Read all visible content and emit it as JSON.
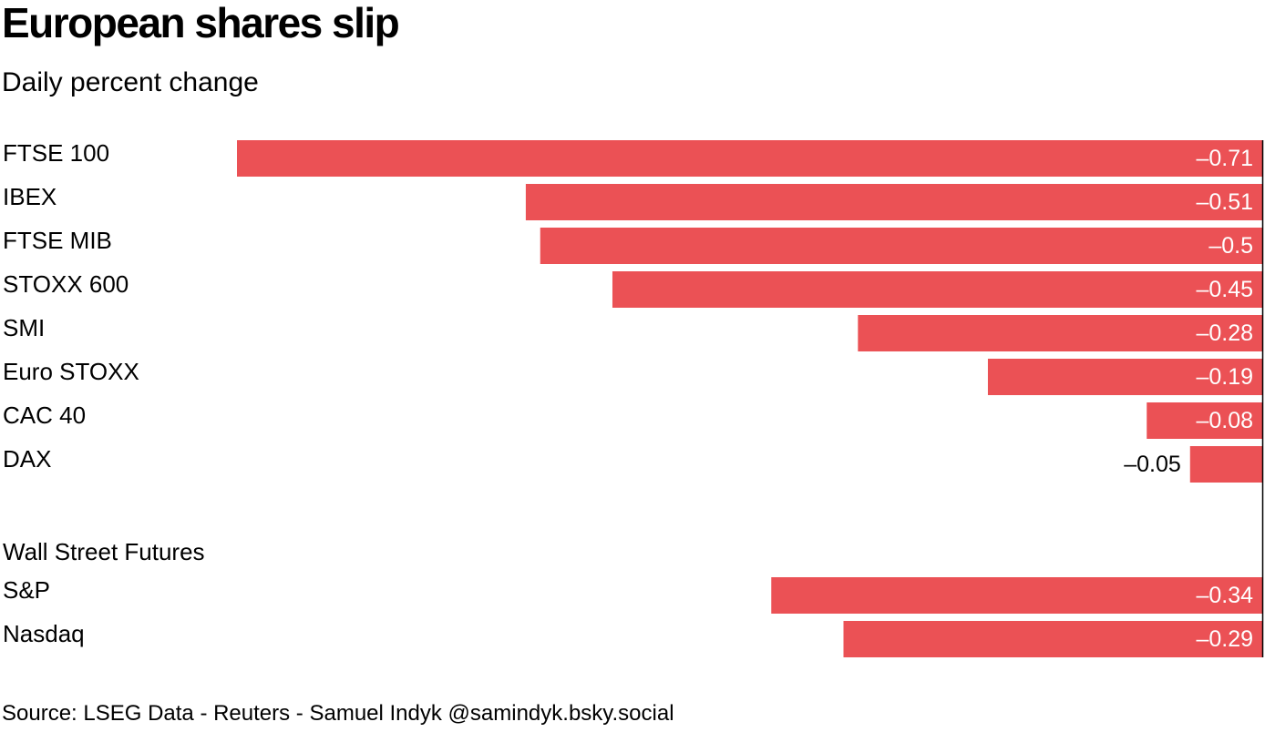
{
  "title": "European shares slip",
  "subtitle": "Daily percent change",
  "source": "Source: LSEG Data - Reuters - Samuel Indyk @samindyk.bsky.social",
  "colors": {
    "bar": "#eb5155",
    "axis": "#000000"
  },
  "chart_data": {
    "type": "bar",
    "orientation": "horizontal",
    "title": "European shares slip",
    "subtitle": "Daily percent change",
    "xlabel": "",
    "ylabel": "",
    "xlim": [
      -0.71,
      0
    ],
    "grid": false,
    "legend": "none",
    "groups": [
      {
        "name": "",
        "categories": [
          "FTSE 100",
          "IBEX",
          "FTSE MIB",
          "STOXX 600",
          "SMI",
          "Euro STOXX",
          "CAC 40",
          "DAX"
        ],
        "values": [
          -0.71,
          -0.51,
          -0.5,
          -0.45,
          -0.28,
          -0.19,
          -0.08,
          -0.05
        ],
        "labels": [
          "–0.71",
          "–0.51",
          "–0.5",
          "–0.45",
          "–0.28",
          "–0.19",
          "–0.08",
          "–0.05"
        ]
      },
      {
        "name": "Wall Street Futures",
        "categories": [
          "S&P",
          "Nasdaq"
        ],
        "values": [
          -0.34,
          -0.29
        ],
        "labels": [
          "–0.34",
          "–0.29"
        ]
      }
    ]
  }
}
